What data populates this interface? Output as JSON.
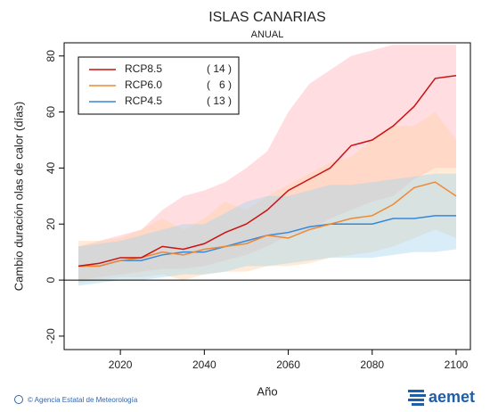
{
  "chart_data": {
    "type": "line",
    "title": "ISLAS CANARIAS",
    "subtitle": "ANUAL",
    "x_label": "Año",
    "y_label": "Cambio duración olas de calor (días)",
    "x": [
      2010,
      2015,
      2020,
      2025,
      2030,
      2035,
      2040,
      2045,
      2050,
      2055,
      2060,
      2065,
      2070,
      2075,
      2080,
      2085,
      2090,
      2095,
      2100
    ],
    "series": [
      {
        "name": "RCP8.5",
        "label": "( 14 )",
        "color": "#cc1111",
        "band_color": "#ffb3bd",
        "values": [
          5,
          6,
          8,
          8,
          12,
          11,
          13,
          17,
          20,
          25,
          32,
          36,
          40,
          48,
          50,
          55,
          62,
          72,
          73
        ],
        "low": [
          0,
          1,
          2,
          3,
          4,
          4,
          5,
          7,
          9,
          12,
          16,
          18,
          22,
          25,
          28,
          30,
          36,
          40,
          40
        ],
        "high": [
          12,
          14,
          16,
          18,
          25,
          30,
          32,
          35,
          40,
          46,
          60,
          70,
          75,
          80,
          82,
          84,
          84,
          84,
          84
        ]
      },
      {
        "name": "RCP6.0",
        "label": "(   6 )",
        "color": "#ee8833",
        "band_color": "#ffd2a8",
        "values": [
          5,
          5,
          7,
          8,
          10,
          9,
          11,
          12,
          13,
          16,
          15,
          18,
          20,
          22,
          23,
          27,
          33,
          35,
          30
        ],
        "low": [
          -1,
          0,
          1,
          1,
          2,
          0,
          2,
          3,
          3,
          5,
          5,
          6,
          8,
          9,
          10,
          12,
          15,
          18,
          15
        ],
        "high": [
          14,
          14,
          15,
          18,
          22,
          18,
          22,
          28,
          25,
          30,
          34,
          38,
          42,
          44,
          50,
          55,
          55,
          60,
          50
        ]
      },
      {
        "name": "RCP4.5",
        "label": "( 13 )",
        "color": "#3388dd",
        "band_color": "#a8d8ee",
        "values": [
          5,
          5,
          7,
          7,
          9,
          10,
          10,
          12,
          14,
          16,
          17,
          19,
          20,
          20,
          20,
          22,
          22,
          23,
          23
        ],
        "low": [
          -2,
          -1,
          0,
          0,
          1,
          2,
          2,
          3,
          5,
          5,
          6,
          7,
          8,
          8,
          8,
          9,
          10,
          10,
          11
        ],
        "high": [
          12,
          13,
          14,
          16,
          18,
          20,
          20,
          24,
          28,
          30,
          30,
          32,
          34,
          34,
          35,
          36,
          37,
          38,
          38
        ]
      }
    ],
    "xlim": [
      2006.6,
      2103.4
    ],
    "xticks": [
      2020,
      2040,
      2060,
      2080,
      2100
    ],
    "ylim": [
      -24.8,
      84.7
    ],
    "yticks": [
      -20,
      0,
      20,
      40,
      60,
      80
    ],
    "legend": "top-left",
    "footer": "© Agencia Estatal de Meteorología",
    "logo": "aemet"
  }
}
